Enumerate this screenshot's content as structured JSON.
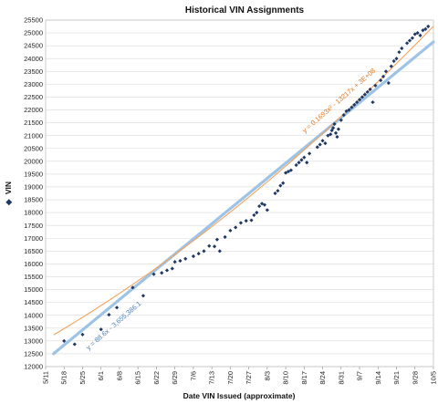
{
  "chart_data": {
    "type": "scatter",
    "title": "Historical VIN Assignments",
    "xlabel": "Date VIN Issued (approximate)",
    "ylabel": "VIN",
    "ylabel_marker": "◆",
    "x_ticks": [
      "5/11",
      "5/18",
      "5/25",
      "6/1",
      "6/8",
      "6/15",
      "6/22",
      "6/29",
      "7/6",
      "7/13",
      "7/20",
      "7/27",
      "8/3",
      "8/10",
      "8/17",
      "8/24",
      "8/31",
      "9/7",
      "9/14",
      "9/21",
      "9/28",
      "10/5"
    ],
    "xlim": [
      0,
      147
    ],
    "ylim": [
      12000,
      25500
    ],
    "y_step": 500,
    "grid": "horizontal",
    "colors": {
      "points": "#1f3864",
      "linear_trend": "#9dc3e6",
      "poly_trend": "#f4a259",
      "grid": "#d9d9d9",
      "axis": "#7f7f7f"
    },
    "series": [
      {
        "values": [
          [
            7,
            13000
          ],
          [
            11,
            12870
          ],
          [
            14,
            13250
          ],
          [
            21,
            13450
          ],
          [
            24,
            14020
          ],
          [
            27,
            14300
          ],
          [
            33,
            15080
          ],
          [
            37,
            14760
          ],
          [
            41,
            15600
          ],
          [
            44,
            15650
          ],
          [
            46,
            15750
          ],
          [
            48,
            15820
          ],
          [
            49,
            16080
          ],
          [
            51,
            16120
          ],
          [
            53,
            16200
          ],
          [
            56,
            16300
          ],
          [
            58,
            16400
          ],
          [
            60,
            16500
          ],
          [
            62,
            16700
          ],
          [
            64,
            16680
          ],
          [
            65,
            16950
          ],
          [
            66,
            16500
          ],
          [
            68,
            17050
          ],
          [
            70,
            17300
          ],
          [
            72,
            17420
          ],
          [
            74,
            17600
          ],
          [
            76,
            17680
          ],
          [
            78,
            17700
          ],
          [
            79,
            17900
          ],
          [
            80,
            18000
          ],
          [
            81,
            18250
          ],
          [
            82,
            18350
          ],
          [
            83,
            18300
          ],
          [
            84,
            18100
          ],
          [
            87,
            18750
          ],
          [
            88,
            18850
          ],
          [
            89,
            19050
          ],
          [
            90,
            19150
          ],
          [
            91,
            19550
          ],
          [
            92,
            19600
          ],
          [
            93,
            19650
          ],
          [
            95,
            19850
          ],
          [
            96,
            19950
          ],
          [
            97,
            20050
          ],
          [
            98,
            20150
          ],
          [
            99,
            19950
          ],
          [
            100,
            20300
          ],
          [
            103,
            20550
          ],
          [
            104,
            20650
          ],
          [
            105,
            20800
          ],
          [
            106,
            20700
          ],
          [
            107,
            21000
          ],
          [
            108,
            21050
          ],
          [
            108.5,
            21200
          ],
          [
            109,
            21300
          ],
          [
            109.5,
            21450
          ],
          [
            110,
            21100
          ],
          [
            110.5,
            20950
          ],
          [
            111,
            21250
          ],
          [
            112,
            21600
          ],
          [
            113,
            21800
          ],
          [
            114,
            21950
          ],
          [
            115,
            22000
          ],
          [
            116,
            22100
          ],
          [
            117,
            22200
          ],
          [
            118,
            22300
          ],
          [
            119,
            22400
          ],
          [
            120,
            22500
          ],
          [
            121,
            22600
          ],
          [
            122,
            22700
          ],
          [
            123,
            22800
          ],
          [
            124,
            22300
          ],
          [
            125,
            22950
          ],
          [
            127,
            23150
          ],
          [
            128,
            23300
          ],
          [
            129,
            23500
          ],
          [
            130,
            23050
          ],
          [
            131,
            23700
          ],
          [
            132,
            23900
          ],
          [
            133,
            24000
          ],
          [
            134,
            24250
          ],
          [
            135,
            24400
          ],
          [
            137,
            24600
          ],
          [
            138,
            24700
          ],
          [
            139,
            24800
          ],
          [
            140,
            24950
          ],
          [
            141,
            25000
          ],
          [
            142,
            24900
          ],
          [
            143,
            25100
          ],
          [
            144,
            25150
          ],
          [
            145,
            25250
          ]
        ]
      }
    ],
    "trendlines": [
      {
        "type": "linear",
        "equation": "y = 88.6x - 3,655,386.1"
      },
      {
        "type": "polynomial",
        "equation": "y = 0.1693x² - 13217x + 3E+08"
      }
    ]
  }
}
